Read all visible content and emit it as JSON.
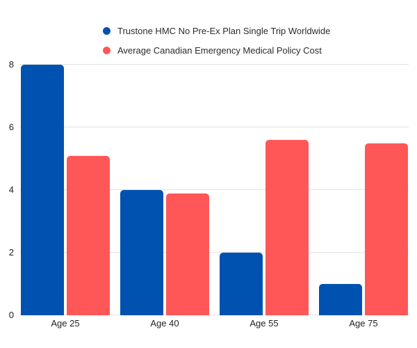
{
  "chart_data": {
    "type": "bar",
    "categories": [
      "Age 25",
      "Age 40",
      "Age 55",
      "Age 75"
    ],
    "series": [
      {
        "name": "Trustone HMC No Pre-Ex Plan Single Trip Worldwide",
        "color": "#0052B0",
        "values": [
          8,
          4,
          2,
          1
        ]
      },
      {
        "name": "Average Canadian Emergency Medical Policy Cost",
        "color": "#FF5757",
        "values": [
          5.1,
          3.9,
          5.6,
          5.5
        ]
      }
    ],
    "ylim": [
      0,
      8
    ],
    "yticks": [
      0,
      2,
      4,
      6,
      8
    ],
    "grid": true,
    "legend_position": "top-center",
    "background": "#ffffff",
    "gridline_color": "#e3e3e3",
    "axis_text_color": "#1f1f1f"
  }
}
